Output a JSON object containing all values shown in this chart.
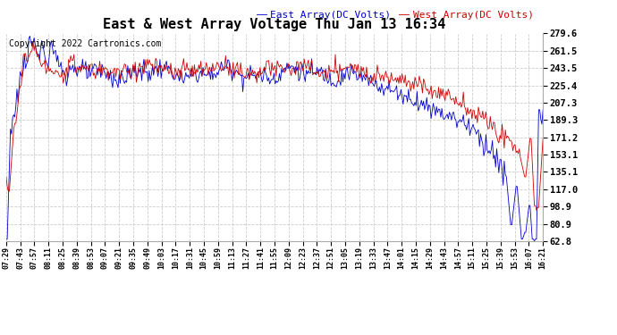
{
  "title": "East & West Array Voltage Thu Jan 13 16:34",
  "copyright": "Copyright 2022 Cartronics.com",
  "legend_east": "East Array(DC Volts)",
  "legend_west": "West Array(DC Volts)",
  "east_color": "#0000cc",
  "west_color": "#cc0000",
  "background_color": "#ffffff",
  "grid_color": "#cccccc",
  "ytick_labels": [
    "62.8",
    "80.9",
    "98.9",
    "117.0",
    "135.1",
    "153.1",
    "171.2",
    "189.3",
    "207.3",
    "225.4",
    "243.5",
    "261.5",
    "279.6"
  ],
  "ytick_values": [
    62.8,
    80.9,
    98.9,
    117.0,
    135.1,
    153.1,
    171.2,
    189.3,
    207.3,
    225.4,
    243.5,
    261.5,
    279.6
  ],
  "ylim": [
    62.8,
    279.6
  ],
  "xtick_labels": [
    "07:29",
    "07:43",
    "07:57",
    "08:11",
    "08:25",
    "08:39",
    "08:53",
    "09:07",
    "09:21",
    "09:35",
    "09:49",
    "10:03",
    "10:17",
    "10:31",
    "10:45",
    "10:59",
    "11:13",
    "11:27",
    "11:41",
    "11:55",
    "12:09",
    "12:23",
    "12:37",
    "12:51",
    "13:05",
    "13:19",
    "13:33",
    "13:47",
    "14:01",
    "14:15",
    "14:29",
    "14:43",
    "14:57",
    "15:11",
    "15:25",
    "15:39",
    "15:53",
    "16:07",
    "16:21"
  ],
  "num_points": 500
}
